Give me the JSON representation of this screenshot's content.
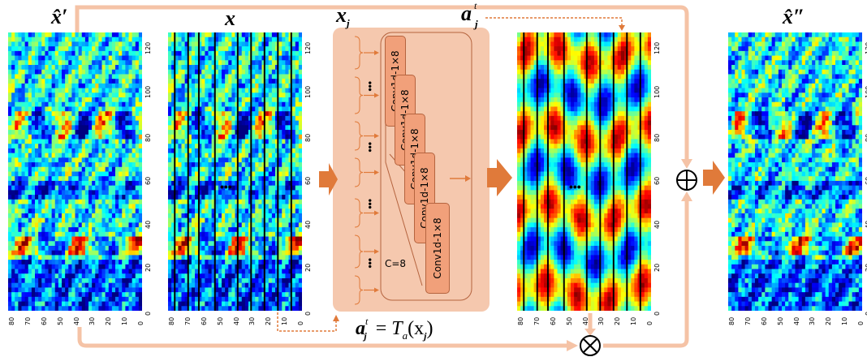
{
  "labels": {
    "x_prime": "x̂′",
    "x": "x",
    "x_j": "x",
    "x_j_sub": "j",
    "a_j": "a",
    "a_j_sup": "t",
    "a_j_sub": "j",
    "x_double_prime": "x̂″"
  },
  "equation": {
    "lhs": "a",
    "lhs_sup": "t",
    "lhs_sub": "j",
    "eq": "=",
    "T": "T",
    "T_sub": "a",
    "arg": "(x",
    "arg_sub": "j",
    "close": ")"
  },
  "conv_blocks": [
    "Conv1d-1×8",
    "Conv1d-1×8",
    "Conv1d-1×8",
    "Conv1d-1×8",
    "Conv1d-1×8"
  ],
  "channel_label": "C=8",
  "ellipsis": "•••",
  "x_ticks": [
    "80",
    "70",
    "60",
    "50",
    "40",
    "30",
    "20",
    "10",
    "0"
  ],
  "y_ticks": [
    "0",
    "20",
    "40",
    "60",
    "80",
    "100",
    "120"
  ],
  "operators": {
    "add": "⊕",
    "multiply": "⊗"
  },
  "colors": {
    "arrow": "#f5c3a6",
    "block_fill": "#f1a07a",
    "module_bg": "#f5c8ae",
    "dotted": "#e07a3a"
  }
}
